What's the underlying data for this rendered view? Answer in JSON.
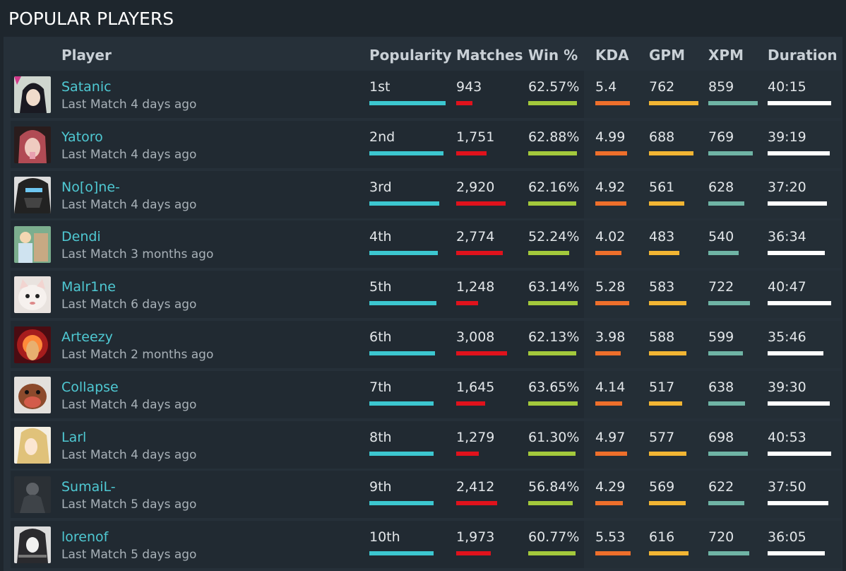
{
  "page_title": "POPULAR PLAYERS",
  "columns": {
    "player": "Player",
    "popularity": "Popularity",
    "matches": "Matches",
    "winrate": "Win %",
    "kda": "KDA",
    "gpm": "GPM",
    "xpm": "XPM",
    "duration": "Duration"
  },
  "colors": {
    "popularity": "#3cc7d0",
    "matches": "#e0121c",
    "winrate": "#a3c93c",
    "kda": "#ee6f2b",
    "gpm": "#f2b533",
    "xpm": "#6fb4a5",
    "duration": "#ffffff",
    "player_name": "#4fc9d3"
  },
  "players": [
    {
      "name": "Satanic",
      "last_match": "Last Match 4 days ago",
      "popularity": "1st",
      "matches": "943",
      "winrate": "62.57%",
      "kda": "5.4",
      "gpm": "762",
      "xpm": "859",
      "duration": "40:15",
      "avatar": "avatar-dark-hair-anime",
      "fill": {
        "popularity": 1.0,
        "matches": 0.32,
        "winrate": 0.99,
        "kda": 0.98,
        "gpm": 1.0,
        "xpm": 1.0,
        "duration": 1.0
      }
    },
    {
      "name": "Yatoro",
      "last_match": "Last Match 4 days ago",
      "popularity": "2nd",
      "matches": "1,751",
      "winrate": "62.88%",
      "kda": "4.99",
      "gpm": "688",
      "xpm": "769",
      "duration": "39:19",
      "avatar": "avatar-red-hair-anime",
      "fill": {
        "popularity": 0.97,
        "matches": 0.6,
        "winrate": 0.99,
        "kda": 0.9,
        "gpm": 0.9,
        "xpm": 0.9,
        "duration": 0.98
      }
    },
    {
      "name": "No[o]ne-",
      "last_match": "Last Match 4 days ago",
      "popularity": "3rd",
      "matches": "2,920",
      "winrate": "62.16%",
      "kda": "4.92",
      "gpm": "561",
      "xpm": "628",
      "duration": "37:20",
      "avatar": "avatar-masked-anime",
      "fill": {
        "popularity": 0.92,
        "matches": 0.97,
        "winrate": 0.97,
        "kda": 0.88,
        "gpm": 0.72,
        "xpm": 0.73,
        "duration": 0.93
      }
    },
    {
      "name": "Dendi",
      "last_match": "Last Match 3 months ago",
      "popularity": "4th",
      "matches": "2,774",
      "winrate": "52.24%",
      "kda": "4.02",
      "gpm": "483",
      "xpm": "540",
      "duration": "36:34",
      "avatar": "avatar-photo-person",
      "fill": {
        "popularity": 0.9,
        "matches": 0.92,
        "winrate": 0.83,
        "kda": 0.73,
        "gpm": 0.62,
        "xpm": 0.62,
        "duration": 0.9
      }
    },
    {
      "name": "Malr1ne",
      "last_match": "Last Match 6 days ago",
      "popularity": "5th",
      "matches": "1,248",
      "winrate": "63.14%",
      "kda": "5.28",
      "gpm": "583",
      "xpm": "722",
      "duration": "40:47",
      "avatar": "avatar-cat",
      "fill": {
        "popularity": 0.88,
        "matches": 0.43,
        "winrate": 1.0,
        "kda": 0.96,
        "gpm": 0.75,
        "xpm": 0.84,
        "duration": 1.01
      }
    },
    {
      "name": "Arteezy",
      "last_match": "Last Match 2 months ago",
      "popularity": "6th",
      "matches": "3,008",
      "winrate": "62.13%",
      "kda": "3.98",
      "gpm": "588",
      "xpm": "599",
      "duration": "35:46",
      "avatar": "avatar-red-glow",
      "fill": {
        "popularity": 0.86,
        "matches": 1.0,
        "winrate": 0.97,
        "kda": 0.72,
        "gpm": 0.76,
        "xpm": 0.7,
        "duration": 0.88
      }
    },
    {
      "name": "Collapse",
      "last_match": "Last Match 4 days ago",
      "popularity": "7th",
      "matches": "1,645",
      "winrate": "63.65%",
      "kda": "4.14",
      "gpm": "517",
      "xpm": "638",
      "duration": "39:30",
      "avatar": "avatar-dog",
      "fill": {
        "popularity": 0.84,
        "matches": 0.57,
        "winrate": 1.0,
        "kda": 0.75,
        "gpm": 0.67,
        "xpm": 0.74,
        "duration": 0.98
      }
    },
    {
      "name": "Larl",
      "last_match": "Last Match 4 days ago",
      "popularity": "8th",
      "matches": "1,279",
      "winrate": "61.30%",
      "kda": "4.97",
      "gpm": "577",
      "xpm": "698",
      "duration": "40:53",
      "avatar": "avatar-blonde-anime",
      "fill": {
        "popularity": 0.84,
        "matches": 0.44,
        "winrate": 0.96,
        "kda": 0.9,
        "gpm": 0.76,
        "xpm": 0.8,
        "duration": 1.01
      }
    },
    {
      "name": "SumaiL-",
      "last_match": "Last Match 5 days ago",
      "popularity": "9th",
      "matches": "2,412",
      "winrate": "56.84%",
      "kda": "4.29",
      "gpm": "569",
      "xpm": "622",
      "duration": "37:50",
      "avatar": "avatar-dark-figure",
      "fill": {
        "popularity": 0.84,
        "matches": 0.8,
        "winrate": 0.9,
        "kda": 0.78,
        "gpm": 0.74,
        "xpm": 0.73,
        "duration": 0.95
      }
    },
    {
      "name": "lorenof",
      "last_match": "Last Match 5 days ago",
      "popularity": "10th",
      "matches": "1,973",
      "winrate": "60.77%",
      "kda": "5.53",
      "gpm": "616",
      "xpm": "720",
      "duration": "36:05",
      "avatar": "avatar-mono-anime",
      "fill": {
        "popularity": 0.84,
        "matches": 0.68,
        "winrate": 0.96,
        "kda": 1.0,
        "gpm": 0.8,
        "xpm": 0.83,
        "duration": 0.9
      }
    }
  ]
}
